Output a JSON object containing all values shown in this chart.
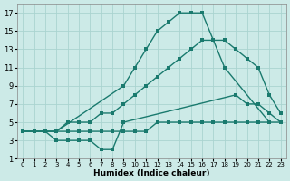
{
  "xlabel": "Humidex (Indice chaleur)",
  "bg_color": "#cceae7",
  "grid_color": "#aad4d0",
  "line_color": "#1a7a6e",
  "xlim": [
    -0.5,
    23.5
  ],
  "ylim": [
    1,
    18
  ],
  "xticks": [
    0,
    1,
    2,
    3,
    4,
    5,
    6,
    7,
    8,
    9,
    10,
    11,
    12,
    13,
    14,
    15,
    16,
    17,
    18,
    19,
    20,
    21,
    22,
    23
  ],
  "yticks": [
    1,
    3,
    5,
    7,
    9,
    11,
    13,
    15,
    17
  ],
  "line_main_x": [
    0,
    1,
    2,
    3,
    4,
    5,
    6,
    7,
    8,
    9,
    10,
    11,
    12,
    13,
    14,
    15,
    16,
    17,
    18,
    19,
    20,
    21,
    22,
    23
  ],
  "line_main_y": [
    4,
    4,
    4,
    4,
    5,
    5,
    5,
    6,
    6,
    7,
    8,
    9,
    10,
    11,
    12,
    13,
    14,
    14,
    14,
    13,
    12,
    11,
    8,
    6
  ],
  "line_peak_x": [
    0,
    1,
    2,
    3,
    9,
    10,
    11,
    12,
    13,
    14,
    15,
    16,
    17,
    18,
    22
  ],
  "line_peak_y": [
    4,
    4,
    4,
    4,
    9,
    11,
    13,
    15,
    16,
    17,
    17,
    17,
    14,
    11,
    5
  ],
  "line_low_x": [
    0,
    1,
    2,
    3,
    4,
    5,
    6,
    7,
    8,
    9,
    19,
    20,
    21,
    22,
    23
  ],
  "line_low_y": [
    4,
    4,
    4,
    3,
    3,
    3,
    3,
    2,
    2,
    5,
    8,
    7,
    7,
    6,
    5
  ],
  "line_flat_x": [
    0,
    1,
    2,
    3,
    4,
    5,
    6,
    7,
    8,
    9,
    10,
    11,
    12,
    13,
    14,
    15,
    16,
    17,
    18,
    19,
    20,
    21,
    22,
    23
  ],
  "line_flat_y": [
    4,
    4,
    4,
    4,
    4,
    4,
    4,
    4,
    4,
    4,
    4,
    4,
    5,
    5,
    5,
    5,
    5,
    5,
    5,
    5,
    5,
    5,
    5,
    5
  ]
}
